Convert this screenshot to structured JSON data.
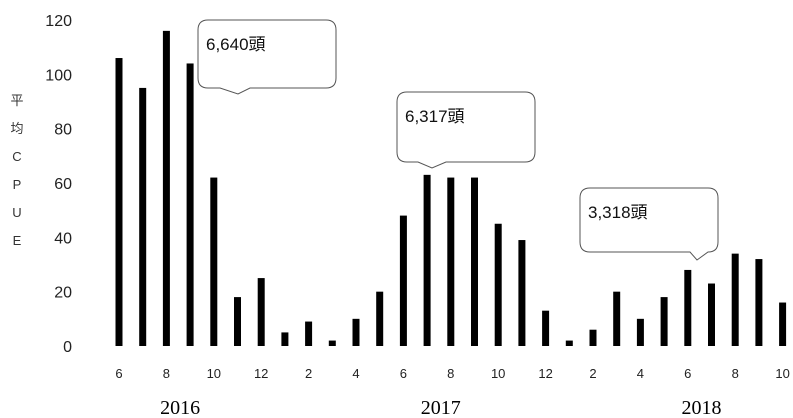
{
  "chart_data": {
    "type": "bar",
    "title": "",
    "xlabel": "",
    "ylabel_chars": [
      "平",
      "均",
      "C",
      "P",
      "U",
      "E"
    ],
    "ylim": [
      0,
      120
    ],
    "yticks": [
      0,
      20,
      40,
      60,
      80,
      100,
      120
    ],
    "grid": false,
    "categories": [
      "6",
      "7",
      "8",
      "9",
      "10",
      "11",
      "12",
      "1",
      "2",
      "3",
      "4",
      "5",
      "6",
      "7",
      "8",
      "9",
      "10",
      "11",
      "12",
      "1",
      "2",
      "3",
      "4",
      "5",
      "6",
      "7",
      "8",
      "9",
      "10"
    ],
    "tick_labels": [
      "6",
      "",
      "8",
      "",
      "10",
      "",
      "12",
      "",
      "2",
      "",
      "4",
      "",
      "6",
      "",
      "8",
      "",
      "10",
      "",
      "12",
      "",
      "2",
      "",
      "4",
      "",
      "6",
      "",
      "8",
      "",
      "10"
    ],
    "values": [
      106,
      95,
      116,
      104,
      62,
      18,
      25,
      5,
      9,
      2,
      10,
      20,
      48,
      63,
      62,
      62,
      45,
      39,
      13,
      2,
      6,
      20,
      10,
      18,
      28,
      23,
      34,
      32,
      16
    ],
    "years": [
      {
        "label": "2016",
        "center_index": 3
      },
      {
        "label": "2017",
        "center_index": 14
      },
      {
        "label": "2018",
        "center_index": 25
      }
    ],
    "annotations": [
      {
        "text": "6,640頭",
        "anchor_index": 4
      },
      {
        "text": "6,317頭",
        "anchor_index": 13
      },
      {
        "text": "3,318頭",
        "anchor_index": 24
      }
    ]
  }
}
